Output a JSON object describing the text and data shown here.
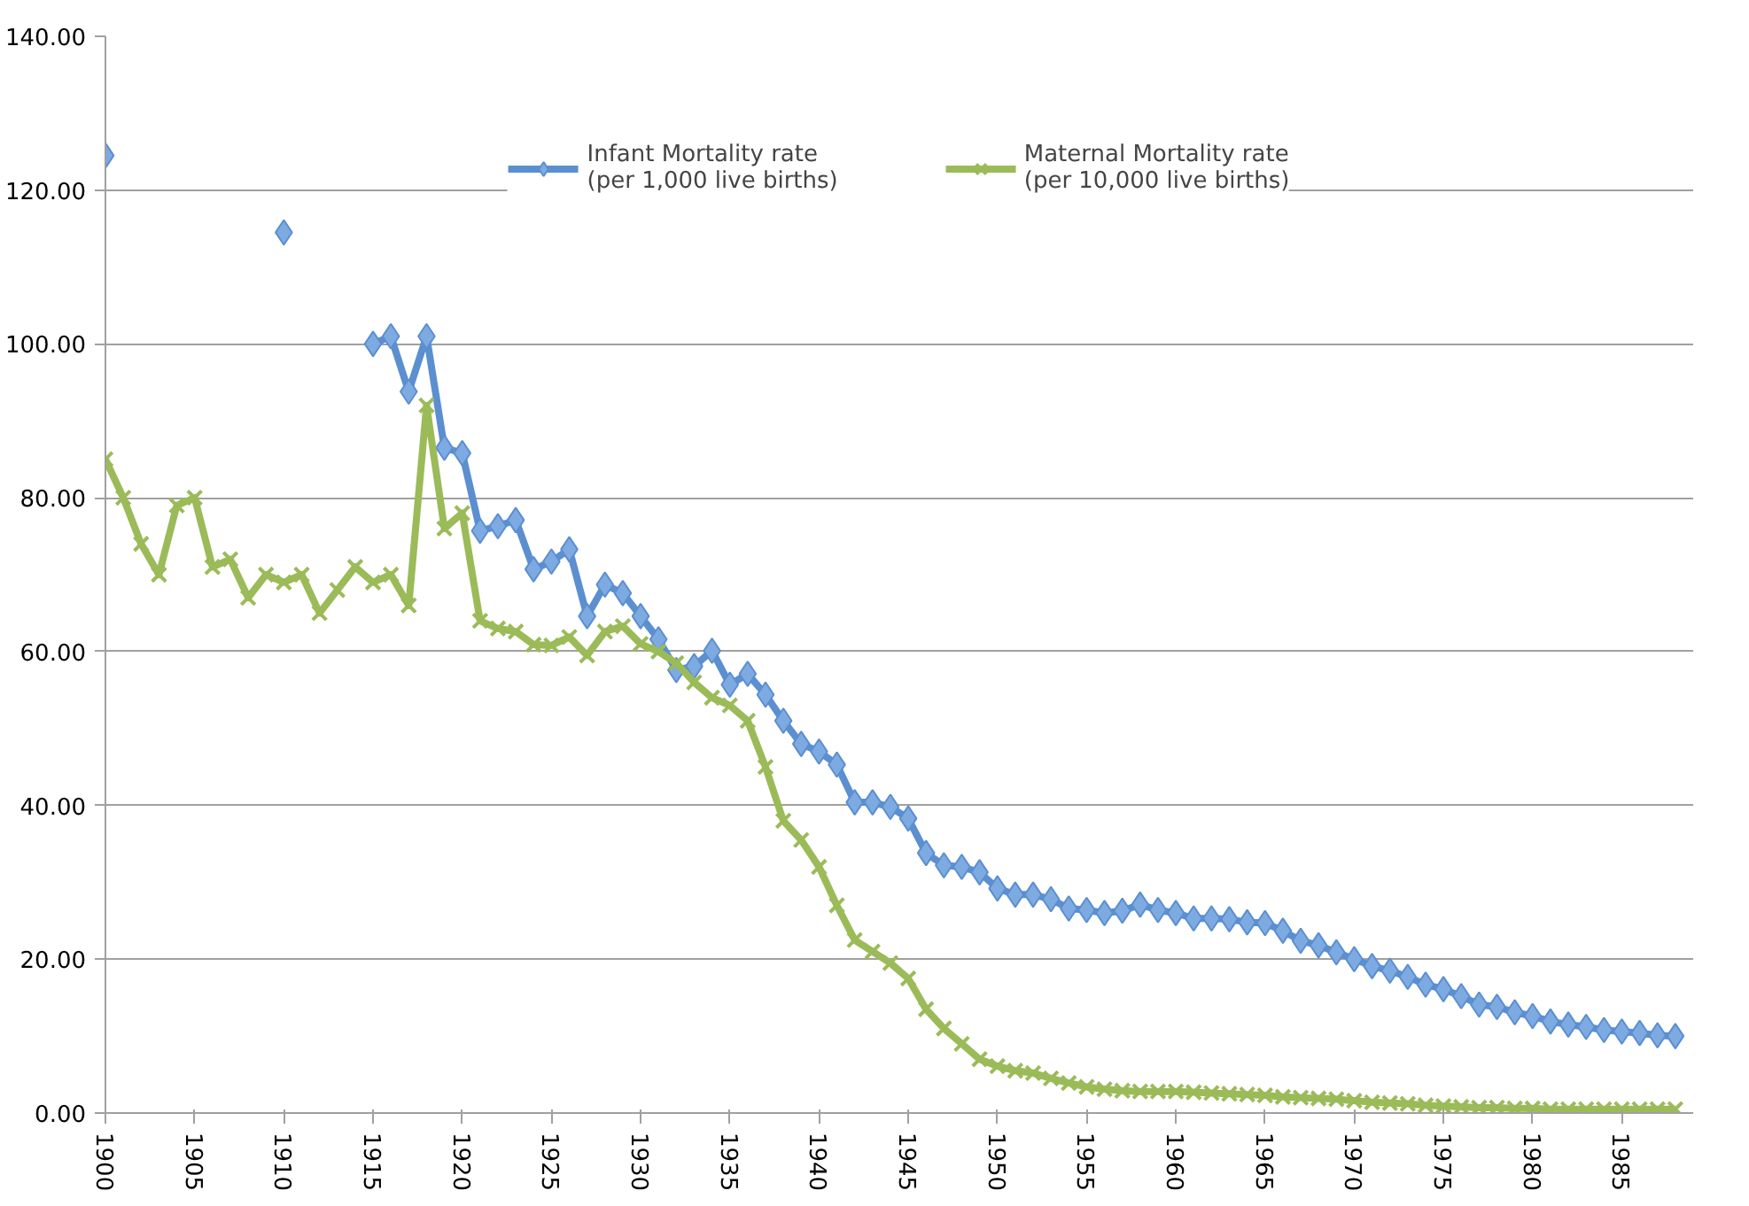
{
  "chart_data": {
    "type": "line",
    "x": [
      1900,
      1901,
      1902,
      1903,
      1904,
      1905,
      1906,
      1907,
      1908,
      1909,
      1910,
      1911,
      1912,
      1913,
      1914,
      1915,
      1916,
      1917,
      1918,
      1919,
      1920,
      1921,
      1922,
      1923,
      1924,
      1925,
      1926,
      1927,
      1928,
      1929,
      1930,
      1931,
      1932,
      1933,
      1934,
      1935,
      1936,
      1937,
      1938,
      1939,
      1940,
      1941,
      1942,
      1943,
      1944,
      1945,
      1946,
      1947,
      1948,
      1949,
      1950,
      1951,
      1952,
      1953,
      1954,
      1955,
      1956,
      1957,
      1958,
      1959,
      1960,
      1961,
      1962,
      1963,
      1964,
      1965,
      1966,
      1967,
      1968,
      1969,
      1970,
      1971,
      1972,
      1973,
      1974,
      1975,
      1976,
      1977,
      1978,
      1979,
      1980,
      1981,
      1982,
      1983,
      1984,
      1985,
      1986,
      1987,
      1988
    ],
    "series": [
      {
        "name": "Infant Mortality rate\n(per 1,000 live births)",
        "color": "#5b8fd0",
        "marker": "diamond",
        "values": [
          124.5,
          null,
          null,
          null,
          null,
          null,
          null,
          null,
          null,
          null,
          114.5,
          null,
          null,
          null,
          null,
          100,
          101,
          93.8,
          101,
          86.5,
          85.8,
          75.7,
          76.3,
          77.1,
          70.7,
          71.7,
          73.3,
          64.6,
          68.7,
          67.6,
          64.6,
          61.6,
          57.6,
          58.1,
          60.1,
          55.7,
          57.1,
          54.4,
          51.0,
          48.0,
          47.0,
          45.3,
          40.4,
          40.4,
          39.8,
          38.3,
          33.8,
          32.2,
          32.0,
          31.3,
          29.2,
          28.4,
          28.4,
          27.8,
          26.6,
          26.4,
          26.0,
          26.3,
          27.1,
          26.4,
          26.0,
          25.3,
          25.3,
          25.2,
          24.8,
          24.7,
          23.7,
          22.4,
          21.8,
          20.9,
          20.0,
          19.1,
          18.5,
          17.7,
          16.7,
          16.1,
          15.2,
          14.1,
          13.8,
          13.1,
          12.6,
          11.9,
          11.5,
          11.2,
          10.8,
          10.6,
          10.4,
          10.1,
          10.0
        ]
      },
      {
        "name": "Maternal Mortality rate\n(per 10,000 live births)",
        "color": "#9bbb59",
        "marker": "cross",
        "values": [
          85,
          80,
          74,
          70,
          79,
          80,
          71,
          72,
          67,
          70,
          69,
          70,
          65,
          68,
          71,
          69,
          70,
          66,
          92,
          76,
          78,
          64,
          63,
          62.6,
          60.9,
          60.8,
          61.9,
          59.5,
          62.6,
          63.3,
          61,
          60,
          58.5,
          56,
          54,
          53,
          51,
          45,
          38,
          35.5,
          32,
          27,
          22.5,
          21,
          19.5,
          17.5,
          13.5,
          11,
          9,
          7,
          6.1,
          5.5,
          5.2,
          4.5,
          3.9,
          3.4,
          3.1,
          2.9,
          2.8,
          2.8,
          2.8,
          2.7,
          2.6,
          2.5,
          2.4,
          2.3,
          2.1,
          2.0,
          1.9,
          1.8,
          1.6,
          1.4,
          1.3,
          1.2,
          1.0,
          0.9,
          0.8,
          0.7,
          0.7,
          0.6,
          0.6,
          0.5,
          0.5,
          0.5,
          0.5,
          0.5,
          0.5,
          0.5,
          0.5
        ]
      }
    ],
    "xlim": [
      1900,
      1989
    ],
    "xticks": [
      1900,
      1905,
      1910,
      1915,
      1920,
      1925,
      1930,
      1935,
      1940,
      1945,
      1950,
      1955,
      1960,
      1965,
      1970,
      1975,
      1980,
      1985
    ],
    "ylim": [
      0,
      140
    ],
    "yticks": [
      {
        "value": 0,
        "label": "0.00"
      },
      {
        "value": 20,
        "label": "20.00"
      },
      {
        "value": 40,
        "label": "40.00"
      },
      {
        "value": 60,
        "label": "60.00"
      },
      {
        "value": 80,
        "label": "80.00"
      },
      {
        "value": 100,
        "label": "100.00"
      },
      {
        "value": 120,
        "label": "120.00"
      },
      {
        "value": 140,
        "label": "140.00"
      }
    ],
    "grid": "y",
    "legend": "top",
    "line_style": "solid"
  }
}
